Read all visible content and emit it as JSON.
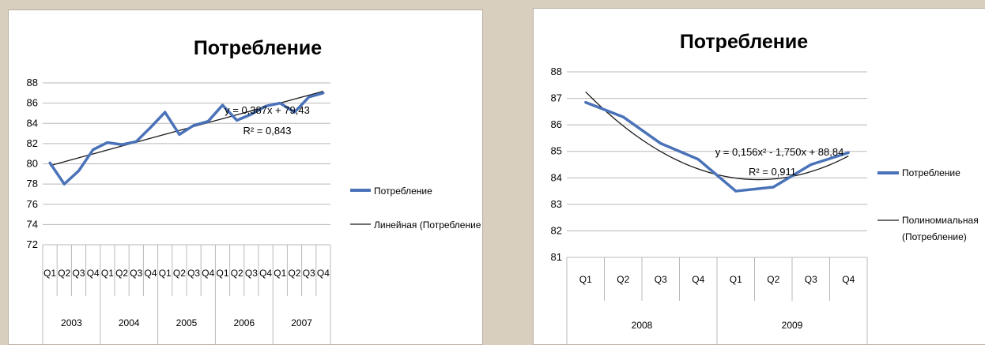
{
  "colors": {
    "series": "#4a72b8",
    "trend": "#1a1a1a",
    "grid": "#b8b8b8",
    "background": "#d9cfbf"
  },
  "chart_data": [
    {
      "type": "line",
      "title": "Потребление",
      "ylim": [
        72,
        88
      ],
      "yticks": [
        "72",
        "74",
        "76",
        "78",
        "80",
        "82",
        "84",
        "86",
        "88"
      ],
      "quarters": [
        "Q1",
        "Q2",
        "Q3",
        "Q4",
        "Q1",
        "Q2",
        "Q3",
        "Q4",
        "Q1",
        "Q2",
        "Q3",
        "Q4",
        "Q1",
        "Q2",
        "Q3",
        "Q4",
        "Q1",
        "Q2",
        "Q3",
        "Q4"
      ],
      "years": [
        "2003",
        "2004",
        "2005",
        "2006",
        "2007"
      ],
      "series": [
        {
          "name": "Потребление",
          "values": [
            80.1,
            78.0,
            79.3,
            81.4,
            82.1,
            81.9,
            82.2,
            83.6,
            85.1,
            82.9,
            83.8,
            84.2,
            85.8,
            84.3,
            84.9,
            85.7,
            86.0,
            85.1,
            86.6,
            87.0
          ]
        }
      ],
      "trendline": {
        "name": "Линейная (Потребление",
        "type": "linear",
        "slope": 0.387,
        "intercept": 79.43
      },
      "equation": "y = 0,387x + 79,43",
      "r2": "R² = 0,843",
      "legend_position": "right",
      "grid": true
    },
    {
      "type": "line",
      "title": "Потребление",
      "ylim": [
        81,
        88
      ],
      "yticks": [
        "81",
        "82",
        "83",
        "84",
        "85",
        "86",
        "87",
        "88"
      ],
      "quarters": [
        "Q1",
        "Q2",
        "Q3",
        "Q4",
        "Q1",
        "Q2",
        "Q3",
        "Q4"
      ],
      "years": [
        "2008",
        "2009"
      ],
      "series": [
        {
          "name": "Потребление",
          "values": [
            86.85,
            86.3,
            85.3,
            84.7,
            83.5,
            83.65,
            84.5,
            84.95
          ]
        }
      ],
      "trendline": {
        "name_line1": "Полиномиальная",
        "name_line2": "(Потребление)",
        "type": "poly2",
        "a": 0.156,
        "b": -1.75,
        "c": 88.84
      },
      "equation": "y = 0,156x² - 1,750x + 88,84",
      "r2": "R² = 0,911",
      "legend_position": "right",
      "grid": true
    }
  ]
}
